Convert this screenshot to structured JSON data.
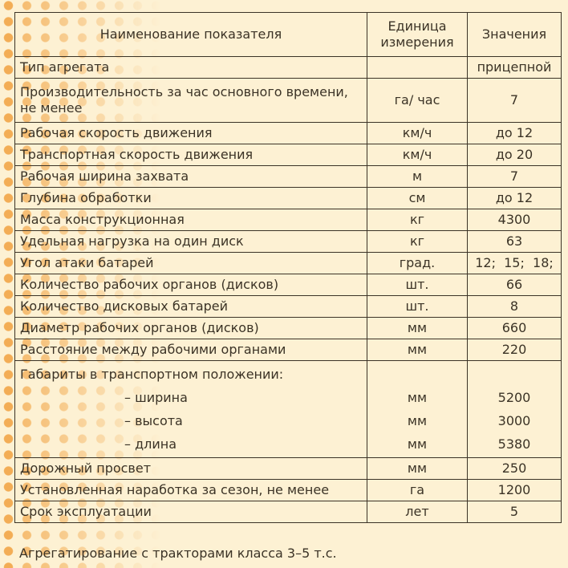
{
  "headers": {
    "name": "Наименование показателя",
    "unit": "Единица измерения",
    "value": "Значения"
  },
  "rows": [
    {
      "name": "Тип агрегата",
      "unit": "",
      "value": "прицепной"
    },
    {
      "name": "Производительность за час основного времени, не менее",
      "unit": "га/ час",
      "value": "7"
    },
    {
      "name": "Рабочая скорость движения",
      "unit": "км/ч",
      "value": "до 12"
    },
    {
      "name": "Транспортная скорость движения",
      "unit": "км/ч",
      "value": "до 20"
    },
    {
      "name": "Рабочая ширина захвата",
      "unit": "м",
      "value": "7"
    },
    {
      "name": "Глубина обработки",
      "unit": "см",
      "value": "до 12"
    },
    {
      "name": "Масса конструкционная",
      "unit": "кг",
      "value": "4300"
    },
    {
      "name": "Удельная нагрузка на один диск",
      "unit": "кг",
      "value": "63"
    },
    {
      "name": "Угол атаки батарей",
      "unit": "град.",
      "value": "12;  15;  18;"
    },
    {
      "name": "Количество рабочих органов (дисков)",
      "unit": "шт.",
      "value": "66"
    },
    {
      "name": "Количество дисковых батарей",
      "unit": "шт.",
      "value": "8"
    },
    {
      "name": "Диаметр рабочих органов (дисков)",
      "unit": "мм",
      "value": "660"
    },
    {
      "name": "Расстояние между рабочими органами",
      "unit": "мм",
      "value": "220"
    }
  ],
  "dimensions": {
    "name": "Габариты в транспортном положении:",
    "items": [
      {
        "name": "– ширина",
        "unit": "мм",
        "value": "5200"
      },
      {
        "name": "– высота",
        "unit": "мм",
        "value": "3000"
      },
      {
        "name": "– длина",
        "unit": "мм",
        "value": "5380"
      }
    ]
  },
  "rows_after": [
    {
      "name": "Дорожный просвет",
      "unit": "мм",
      "value": "250"
    },
    {
      "name": "Установленная наработка за сезон, не менее",
      "unit": "га",
      "value": "1200"
    },
    {
      "name": "Срок эксплуатации",
      "unit": "лет",
      "value": "5"
    }
  ],
  "footer": "Агрегатирование с тракторами класса 3–5 т.с.",
  "colors": {
    "background": "#fdf1d3",
    "dots": "#f3ad55",
    "text": "#3b3326"
  }
}
